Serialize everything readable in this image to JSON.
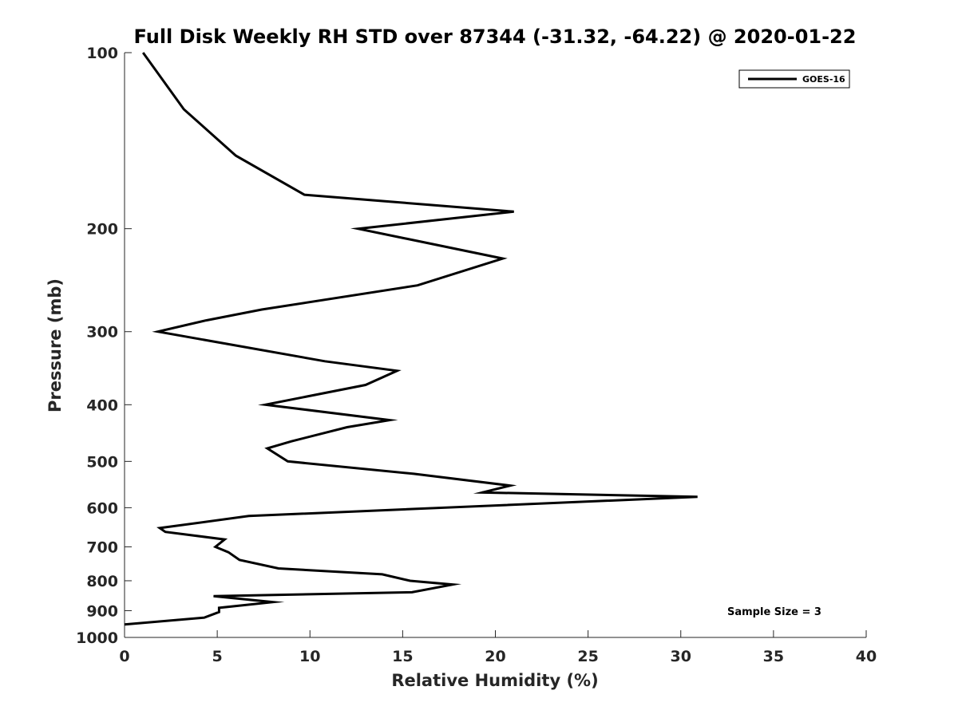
{
  "chart_data": {
    "type": "line",
    "title": "Full Disk Weekly RH STD over 87344 (-31.32, -64.22) @ 2020-01-22",
    "xlabel": "Relative Humidity (%)",
    "ylabel": "Pressure (mb)",
    "xlim": [
      0,
      40
    ],
    "ylim": [
      100,
      1000
    ],
    "y_scale": "log",
    "y_reversed": true,
    "xticks": [
      0,
      5,
      10,
      15,
      20,
      25,
      30,
      35,
      40
    ],
    "yticks": [
      100,
      200,
      300,
      400,
      500,
      600,
      700,
      800,
      900,
      1000
    ],
    "grid": false,
    "legend_position": "top-right",
    "series": [
      {
        "name": "GOES-16",
        "color": "#000000",
        "points": [
          [
            1.0,
            100
          ],
          [
            3.2,
            125
          ],
          [
            6.0,
            150
          ],
          [
            9.7,
            175
          ],
          [
            21.0,
            187
          ],
          [
            12.6,
            200
          ],
          [
            20.4,
            225
          ],
          [
            15.8,
            250
          ],
          [
            7.4,
            275
          ],
          [
            4.4,
            287
          ],
          [
            1.8,
            300
          ],
          [
            10.8,
            337
          ],
          [
            14.7,
            350
          ],
          [
            13.0,
            370
          ],
          [
            7.6,
            400
          ],
          [
            14.3,
            425
          ],
          [
            12.0,
            437
          ],
          [
            9.0,
            462
          ],
          [
            7.7,
            475
          ],
          [
            8.8,
            500
          ],
          [
            15.6,
            525
          ],
          [
            20.8,
            550
          ],
          [
            19.3,
            565
          ],
          [
            30.9,
            575
          ],
          [
            6.7,
            620
          ],
          [
            1.9,
            650
          ],
          [
            2.2,
            660
          ],
          [
            5.4,
            680
          ],
          [
            4.9,
            700
          ],
          [
            5.6,
            715
          ],
          [
            6.2,
            737
          ],
          [
            8.3,
            762
          ],
          [
            13.9,
            780
          ],
          [
            15.4,
            800
          ],
          [
            17.7,
            812
          ],
          [
            15.5,
            837
          ],
          [
            4.8,
            850
          ],
          [
            8.0,
            870
          ],
          [
            5.1,
            890
          ],
          [
            5.1,
            905
          ],
          [
            4.3,
            925
          ],
          [
            0.0,
            950
          ]
        ]
      }
    ],
    "annotation": "Sample Size = 3"
  }
}
